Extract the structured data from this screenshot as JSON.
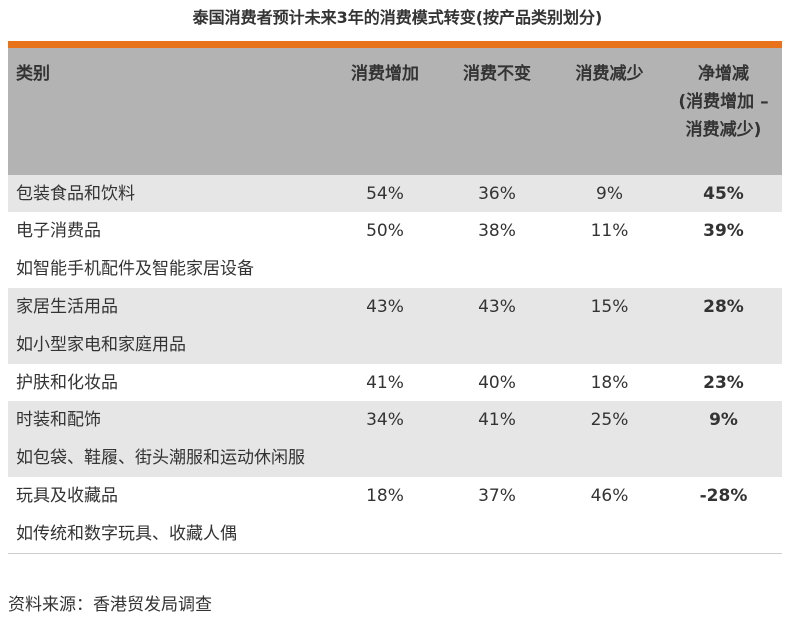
{
  "title": "泰国消费者预计未来3年的消费模式转变(按产品类别划分)",
  "table": {
    "header": [
      "类别",
      "消费增加",
      "消费不变",
      "消费减少",
      "净增减\n(消费增加 – 消费减少)"
    ],
    "rows": [
      {
        "name": "包装食品和饮料",
        "values": [
          "54%",
          "36%",
          "9%",
          "45%"
        ]
      },
      {
        "name": "电子消费品",
        "note": "如智能手机配件及智能家居设备",
        "values": [
          "50%",
          "38%",
          "11%",
          "39%"
        ]
      },
      {
        "name": "家居生活用品",
        "note": "如小型家电和家庭用品",
        "values": [
          "43%",
          "43%",
          "15%",
          "28%"
        ]
      },
      {
        "name": "护肤和化妆品",
        "values": [
          "41%",
          "40%",
          "18%",
          "23%"
        ]
      },
      {
        "name": "时装和配饰",
        "note": "如包袋、鞋履、街头潮服和运动休闲服",
        "values": [
          "34%",
          "41%",
          "25%",
          "9%"
        ]
      },
      {
        "name": "玩具及收藏品",
        "note": "如传统和数字玩具、收藏人偶",
        "values": [
          "18%",
          "37%",
          "46%",
          "-28%"
        ]
      }
    ]
  },
  "source": "资料来源：香港贸发局调查"
}
